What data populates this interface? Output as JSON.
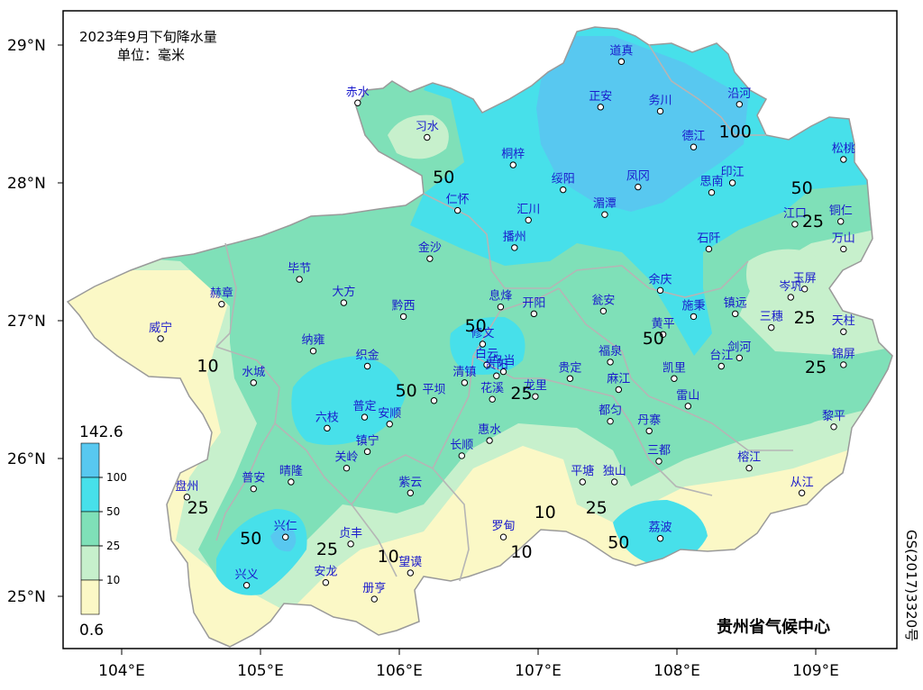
{
  "title": {
    "line1": "2023年9月下旬降水量",
    "line2": "单位：毫米"
  },
  "axes": {
    "lat_labels": [
      "29°N",
      "28°N",
      "27°N",
      "26°N",
      "25°N"
    ],
    "lon_labels": [
      "104°E",
      "105°E",
      "106°E",
      "107°E",
      "108°E",
      "109°E"
    ]
  },
  "legend": {
    "max": "142.6",
    "min": "0.6",
    "levels": [
      "100",
      "50",
      "25",
      "10"
    ],
    "colors": [
      "#fbf8c6",
      "#c7f0cc",
      "#7fe0b8",
      "#47e0ea",
      "#58c8f0"
    ]
  },
  "credit": "贵州省气候中心",
  "map_code": "GS(2017)3320号",
  "stations": [
    {
      "name": "道真",
      "lon": 107.6,
      "lat": 28.88
    },
    {
      "name": "赤水",
      "lon": 105.7,
      "lat": 28.58
    },
    {
      "name": "正安",
      "lon": 107.45,
      "lat": 28.55
    },
    {
      "name": "务川",
      "lon": 107.88,
      "lat": 28.52
    },
    {
      "name": "沿河",
      "lon": 108.45,
      "lat": 28.57
    },
    {
      "name": "习水",
      "lon": 106.2,
      "lat": 28.33
    },
    {
      "name": "德江",
      "lon": 108.12,
      "lat": 28.26
    },
    {
      "name": "桐梓",
      "lon": 106.82,
      "lat": 28.13
    },
    {
      "name": "松桃",
      "lon": 109.2,
      "lat": 28.17
    },
    {
      "name": "绥阳",
      "lon": 107.18,
      "lat": 27.95
    },
    {
      "name": "凤冈",
      "lon": 107.72,
      "lat": 27.97
    },
    {
      "name": "印江",
      "lon": 108.4,
      "lat": 28.0
    },
    {
      "name": "思南",
      "lon": 108.25,
      "lat": 27.93
    },
    {
      "name": "仁怀",
      "lon": 106.42,
      "lat": 27.8
    },
    {
      "name": "汇川",
      "lon": 106.93,
      "lat": 27.73
    },
    {
      "name": "湄潭",
      "lon": 107.48,
      "lat": 27.77
    },
    {
      "name": "江口",
      "lon": 108.85,
      "lat": 27.7
    },
    {
      "name": "铜仁",
      "lon": 109.18,
      "lat": 27.72
    },
    {
      "name": "金沙",
      "lon": 106.22,
      "lat": 27.45
    },
    {
      "name": "播州",
      "lon": 106.83,
      "lat": 27.53
    },
    {
      "name": "石阡",
      "lon": 108.23,
      "lat": 27.52
    },
    {
      "name": "万山",
      "lon": 109.2,
      "lat": 27.52
    },
    {
      "name": "毕节",
      "lon": 105.28,
      "lat": 27.3
    },
    {
      "name": "玉屏",
      "lon": 108.92,
      "lat": 27.23
    },
    {
      "name": "赫章",
      "lon": 104.72,
      "lat": 27.12
    },
    {
      "name": "大方",
      "lon": 105.6,
      "lat": 27.13
    },
    {
      "name": "息烽",
      "lon": 106.73,
      "lat": 27.1
    },
    {
      "name": "开阳",
      "lon": 106.97,
      "lat": 27.05
    },
    {
      "name": "瓮安",
      "lon": 107.47,
      "lat": 27.07
    },
    {
      "name": "余庆",
      "lon": 107.88,
      "lat": 27.22
    },
    {
      "name": "岑巩",
      "lon": 108.82,
      "lat": 27.17
    },
    {
      "name": "镇远",
      "lon": 108.42,
      "lat": 27.05
    },
    {
      "name": "施秉",
      "lon": 108.12,
      "lat": 27.03
    },
    {
      "name": "三穗",
      "lon": 108.68,
      "lat": 26.95
    },
    {
      "name": "黔西",
      "lon": 106.03,
      "lat": 27.03
    },
    {
      "name": "威宁",
      "lon": 104.28,
      "lat": 26.87
    },
    {
      "name": "纳雍",
      "lon": 105.38,
      "lat": 26.78
    },
    {
      "name": "修文",
      "lon": 106.6,
      "lat": 26.83
    },
    {
      "name": "黄平",
      "lon": 107.9,
      "lat": 26.9
    },
    {
      "name": "天柱",
      "lon": 109.2,
      "lat": 26.92
    },
    {
      "name": "白云",
      "lon": 106.63,
      "lat": 26.68
    },
    {
      "name": "织金",
      "lon": 105.77,
      "lat": 26.67
    },
    {
      "name": "乌当",
      "lon": 106.75,
      "lat": 26.63
    },
    {
      "name": "福泉",
      "lon": 107.52,
      "lat": 26.7
    },
    {
      "name": "台江",
      "lon": 108.32,
      "lat": 26.67
    },
    {
      "name": "剑河",
      "lon": 108.45,
      "lat": 26.73
    },
    {
      "name": "水城",
      "lon": 104.95,
      "lat": 26.55
    },
    {
      "name": "清镇",
      "lon": 106.47,
      "lat": 26.55
    },
    {
      "name": "贵阳",
      "lon": 106.7,
      "lat": 26.6
    },
    {
      "name": "贵定",
      "lon": 107.23,
      "lat": 26.58
    },
    {
      "name": "凯里",
      "lon": 107.98,
      "lat": 26.58
    },
    {
      "name": "锦屏",
      "lon": 109.2,
      "lat": 26.68
    },
    {
      "name": "平坝",
      "lon": 106.25,
      "lat": 26.42
    },
    {
      "name": "花溪",
      "lon": 106.67,
      "lat": 26.43
    },
    {
      "name": "龙里",
      "lon": 106.98,
      "lat": 26.45
    },
    {
      "name": "麻江",
      "lon": 107.58,
      "lat": 26.5
    },
    {
      "name": "雷山",
      "lon": 108.08,
      "lat": 26.38
    },
    {
      "name": "普定",
      "lon": 105.75,
      "lat": 26.3
    },
    {
      "name": "安顺",
      "lon": 105.93,
      "lat": 26.25
    },
    {
      "name": "都匀",
      "lon": 107.52,
      "lat": 26.27
    },
    {
      "name": "六枝",
      "lon": 105.48,
      "lat": 26.22
    },
    {
      "name": "惠水",
      "lon": 106.65,
      "lat": 26.13
    },
    {
      "name": "丹寨",
      "lon": 107.8,
      "lat": 26.2
    },
    {
      "name": "黎平",
      "lon": 109.13,
      "lat": 26.23
    },
    {
      "name": "镇宁",
      "lon": 105.77,
      "lat": 26.05
    },
    {
      "name": "长顺",
      "lon": 106.45,
      "lat": 26.02
    },
    {
      "name": "三都",
      "lon": 107.87,
      "lat": 25.98
    },
    {
      "name": "关岭",
      "lon": 105.62,
      "lat": 25.93
    },
    {
      "name": "晴隆",
      "lon": 105.22,
      "lat": 25.83
    },
    {
      "name": "普安",
      "lon": 104.95,
      "lat": 25.78
    },
    {
      "name": "紫云",
      "lon": 106.08,
      "lat": 25.75
    },
    {
      "name": "平塘",
      "lon": 107.32,
      "lat": 25.83
    },
    {
      "name": "独山",
      "lon": 107.55,
      "lat": 25.83
    },
    {
      "name": "榕江",
      "lon": 108.52,
      "lat": 25.93
    },
    {
      "name": "盘州",
      "lon": 104.47,
      "lat": 25.72
    },
    {
      "name": "从江",
      "lon": 108.9,
      "lat": 25.75
    },
    {
      "name": "兴仁",
      "lon": 105.18,
      "lat": 25.43
    },
    {
      "name": "贞丰",
      "lon": 105.65,
      "lat": 25.38
    },
    {
      "name": "罗甸",
      "lon": 106.75,
      "lat": 25.43
    },
    {
      "name": "荔波",
      "lon": 107.88,
      "lat": 25.42
    },
    {
      "name": "望谟",
      "lon": 106.08,
      "lat": 25.17
    },
    {
      "name": "兴义",
      "lon": 104.9,
      "lat": 25.08
    },
    {
      "name": "安龙",
      "lon": 105.47,
      "lat": 25.1
    },
    {
      "name": "册亨",
      "lon": 105.82,
      "lat": 24.98
    }
  ],
  "contour_labels": [
    {
      "text": "50",
      "lon": 106.32,
      "lat": 28.0
    },
    {
      "text": "100",
      "lon": 108.42,
      "lat": 28.33
    },
    {
      "text": "50",
      "lon": 108.9,
      "lat": 27.92
    },
    {
      "text": "25",
      "lon": 108.98,
      "lat": 27.68
    },
    {
      "text": "50",
      "lon": 106.55,
      "lat": 26.92
    },
    {
      "text": "50",
      "lon": 107.83,
      "lat": 26.83
    },
    {
      "text": "25",
      "lon": 108.92,
      "lat": 26.98
    },
    {
      "text": "25",
      "lon": 109.0,
      "lat": 26.62
    },
    {
      "text": "10",
      "lon": 104.62,
      "lat": 26.63
    },
    {
      "text": "50",
      "lon": 106.05,
      "lat": 26.45
    },
    {
      "text": "25",
      "lon": 106.88,
      "lat": 26.43
    },
    {
      "text": "25",
      "lon": 104.55,
      "lat": 25.6
    },
    {
      "text": "10",
      "lon": 107.05,
      "lat": 25.57
    },
    {
      "text": "25",
      "lon": 107.42,
      "lat": 25.6
    },
    {
      "text": "50",
      "lon": 104.93,
      "lat": 25.38
    },
    {
      "text": "25",
      "lon": 105.48,
      "lat": 25.3
    },
    {
      "text": "10",
      "lon": 105.92,
      "lat": 25.25
    },
    {
      "text": "10",
      "lon": 106.88,
      "lat": 25.28
    },
    {
      "text": "50",
      "lon": 107.58,
      "lat": 25.35
    }
  ]
}
